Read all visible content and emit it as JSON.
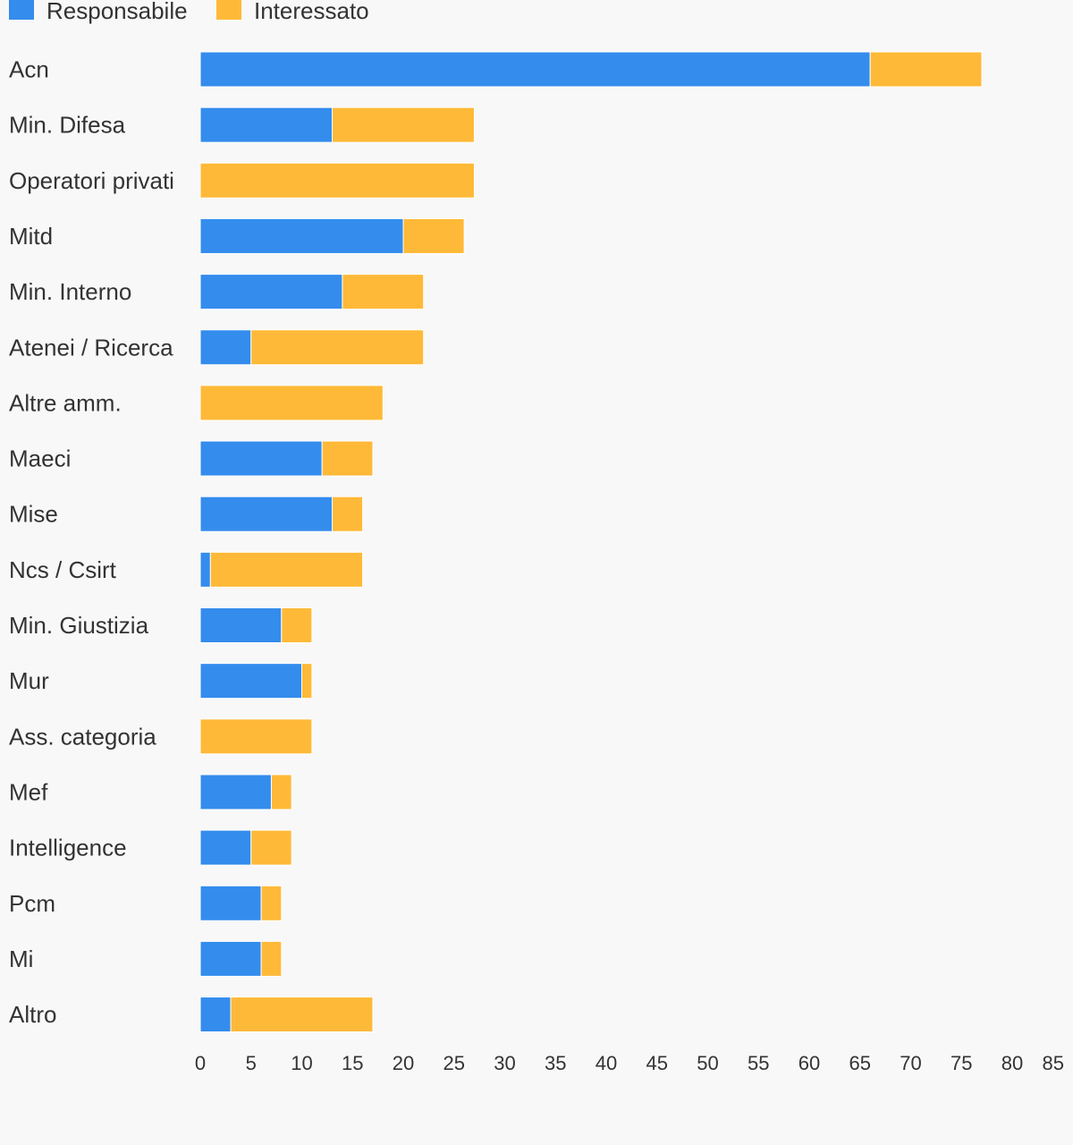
{
  "chart_data": {
    "type": "bar",
    "orientation": "horizontal",
    "stacked": true,
    "categories": [
      "Acn",
      "Min. Difesa",
      "Operatori privati",
      "Mitd",
      "Min. Interno",
      "Atenei / Ricerca",
      "Altre amm.",
      "Maeci",
      "Mise",
      "Ncs / Csirt",
      "Min. Giustizia",
      "Mur",
      "Ass. categoria",
      "Mef",
      "Intelligence",
      "Pcm",
      "Mi",
      "Altro"
    ],
    "series": [
      {
        "name": "Responsabile",
        "color": "#348ced",
        "values": [
          66,
          13,
          0,
          20,
          14,
          5,
          0,
          12,
          13,
          1,
          8,
          10,
          0,
          7,
          5,
          6,
          6,
          3
        ]
      },
      {
        "name": "Interessato",
        "color": "#ffb938",
        "values": [
          11,
          14,
          27,
          6,
          8,
          17,
          18,
          5,
          3,
          15,
          3,
          1,
          11,
          2,
          4,
          2,
          2,
          14
        ]
      }
    ],
    "x_ticks": [
      0,
      5,
      10,
      15,
      20,
      25,
      30,
      35,
      40,
      45,
      50,
      55,
      60,
      65,
      70,
      75,
      80,
      85
    ],
    "xlim": [
      0,
      85
    ],
    "grid": false,
    "legend": "top-left"
  }
}
